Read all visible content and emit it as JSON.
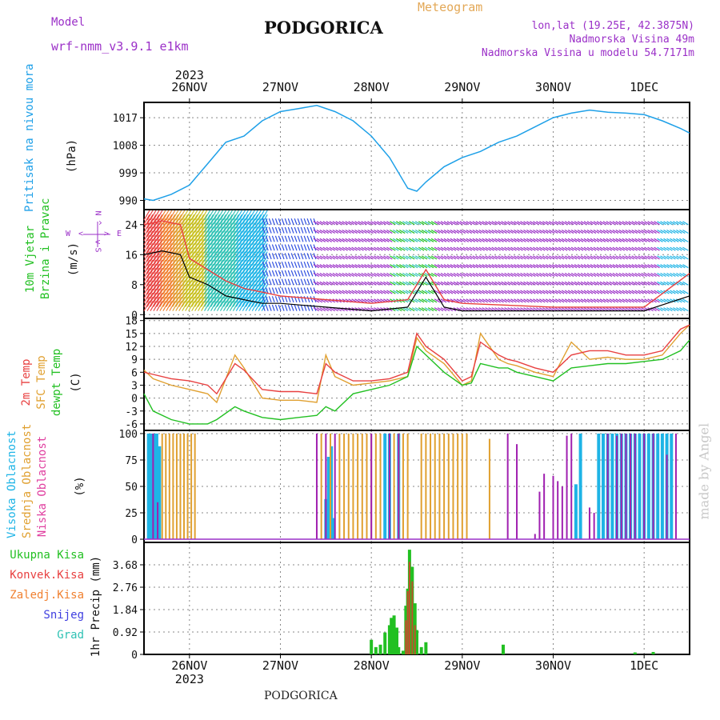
{
  "header": {
    "model_label": "Model",
    "model_name": "wrf-nmm_v3.9.1 e1km",
    "station": "PODGORICA",
    "product": "Meteogram",
    "lonlat": "lon,lat (19.25E, 42.3875N)",
    "elevation": "Nadmorska Visina 49m",
    "model_elevation": "Nadmorska Visina u modelu 54.7171m"
  },
  "footer": {
    "station": "PODGORICA",
    "signature": "made by Angel"
  },
  "colors": {
    "pressure": "#1ea0e8",
    "temp2m": "#e84040",
    "sfc": "#e0a030",
    "dewpt": "#22c022",
    "purple": "#9b30c8",
    "cyan": "#1eb4e6",
    "green": "#22c022",
    "teal": "#2fc2b4",
    "blue": "#4040e0"
  },
  "chart_data": [
    {
      "type": "line",
      "panel": "pressure",
      "ylabel_main": "Pritisak na nivou mora",
      "ylabel_unit": "(hPa)",
      "x_ticks": [
        "26NOV",
        "27NOV",
        "28NOV",
        "29NOV",
        "30NOV",
        "1DEC"
      ],
      "x_year": "2023",
      "ylim": [
        987,
        1022
      ],
      "yticks": [
        990,
        999,
        1008,
        1017
      ],
      "x_range": [
        -0.5,
        5.5
      ],
      "series": [
        {
          "x": [
            -0.5,
            -0.4,
            -0.2,
            0,
            0.2,
            0.4,
            0.6,
            0.8,
            1.0,
            1.2,
            1.4,
            1.6,
            1.8,
            2.0,
            2.2,
            2.4,
            2.5,
            2.6,
            2.8,
            3.0,
            3.2,
            3.4,
            3.6,
            3.8,
            4.0,
            4.2,
            4.4,
            4.6,
            4.8,
            5.0,
            5.2,
            5.4,
            5.5
          ],
          "y": [
            990.5,
            990,
            992,
            995,
            1002,
            1009,
            1011,
            1016,
            1019,
            1020,
            1021,
            1019,
            1016,
            1011,
            1004,
            994,
            993,
            996,
            1001,
            1004,
            1006,
            1009,
            1011,
            1014,
            1017,
            1018.5,
            1019.5,
            1018.8,
            1018.5,
            1018,
            1016,
            1013.5,
            1012
          ]
        }
      ]
    },
    {
      "type": "line",
      "panel": "wind",
      "ylabel_main": "10m Vjetar",
      "ylabel_sub": "Brzina i Pravac",
      "ylabel_unit": "(m/s)",
      "compass": {
        "n": "N",
        "s": "S",
        "w": "W",
        "e": "E",
        "arrow_up": "^",
        "arrow_down": "v",
        "arrow_left": "<",
        "arrow_right": ">"
      },
      "ylim": [
        -1,
        28
      ],
      "yticks": [
        0,
        8,
        16,
        24
      ],
      "series": [
        {
          "color": "black",
          "x": [
            -0.5,
            -0.3,
            -0.1,
            0.0,
            0.2,
            0.4,
            0.6,
            0.8,
            1.0,
            1.5,
            2.0,
            2.4,
            2.6,
            2.8,
            3.0,
            4.0,
            5.0,
            5.5
          ],
          "y": [
            16,
            17,
            16,
            10,
            8,
            5,
            4,
            3,
            3,
            2,
            1,
            2,
            10,
            2,
            1,
            1,
            1,
            5
          ]
        },
        {
          "color": "red",
          "x": [
            -0.5,
            -0.3,
            -0.1,
            0.0,
            0.2,
            0.4,
            0.6,
            0.8,
            1.0,
            1.5,
            2.0,
            2.4,
            2.6,
            2.8,
            3.0,
            4.0,
            5.0,
            5.5
          ],
          "y": [
            24,
            25,
            24,
            15,
            12,
            9,
            7,
            6,
            5,
            4,
            3,
            4,
            12,
            4,
            3,
            2,
            2,
            11
          ]
        }
      ]
    },
    {
      "type": "line",
      "panel": "temperature",
      "ylabel_lines": [
        "2m Temp",
        "SFC Temp",
        "dewpt Temp"
      ],
      "ylabel_unit": "(C)",
      "ylim": [
        -7.5,
        18.5
      ],
      "yticks": [
        -6,
        -3,
        0,
        3,
        6,
        9,
        12,
        15,
        18
      ],
      "series": [
        {
          "name": "2m Temp",
          "x": [
            -0.5,
            -0.4,
            -0.2,
            0,
            0.2,
            0.3,
            0.5,
            0.6,
            0.8,
            1.0,
            1.2,
            1.4,
            1.5,
            1.6,
            1.8,
            2.0,
            2.2,
            2.4,
            2.5,
            2.6,
            2.8,
            3.0,
            3.1,
            3.2,
            3.4,
            3.5,
            3.6,
            3.8,
            4.0,
            4.2,
            4.4,
            4.6,
            4.8,
            5.0,
            5.2,
            5.4,
            5.5
          ],
          "y": [
            6,
            5.5,
            4.5,
            4,
            3,
            1,
            8,
            6.5,
            2,
            1.5,
            1.5,
            1,
            8,
            6,
            4,
            4,
            4.5,
            6,
            15,
            12,
            9,
            4,
            5,
            13,
            10,
            9,
            8.5,
            7,
            6,
            10,
            11,
            11,
            10,
            10,
            11,
            16,
            17
          ]
        },
        {
          "name": "SFC Temp",
          "x": [
            -0.5,
            -0.4,
            -0.2,
            0,
            0.2,
            0.3,
            0.5,
            0.6,
            0.8,
            1.0,
            1.2,
            1.4,
            1.5,
            1.6,
            1.8,
            2.0,
            2.2,
            2.4,
            2.5,
            2.6,
            2.8,
            3.0,
            3.1,
            3.2,
            3.4,
            3.5,
            3.6,
            3.8,
            4.0,
            4.2,
            4.4,
            4.6,
            4.8,
            5.0,
            5.2,
            5.4,
            5.5
          ],
          "y": [
            6.5,
            4.5,
            3,
            2,
            1,
            -1,
            10,
            7,
            0,
            -0.5,
            -0.5,
            -1,
            10,
            5,
            3,
            3.5,
            4,
            5,
            14,
            11,
            8,
            3,
            4,
            15,
            9,
            8,
            7.5,
            6,
            5,
            13,
            9,
            9.5,
            9,
            9,
            10,
            15,
            17
          ]
        },
        {
          "name": "dewpt Temp",
          "x": [
            -0.5,
            -0.4,
            -0.2,
            0,
            0.2,
            0.3,
            0.5,
            0.6,
            0.8,
            1.0,
            1.2,
            1.4,
            1.5,
            1.6,
            1.8,
            2.0,
            2.2,
            2.4,
            2.5,
            2.6,
            2.8,
            3.0,
            3.1,
            3.2,
            3.4,
            3.5,
            3.6,
            3.8,
            4.0,
            4.2,
            4.4,
            4.6,
            4.8,
            5.0,
            5.2,
            5.4,
            5.5
          ],
          "y": [
            1,
            -3,
            -5,
            -6,
            -6,
            -5,
            -2,
            -3,
            -4.5,
            -5,
            -4.5,
            -4,
            -2,
            -3,
            1,
            2,
            3,
            5,
            12,
            10,
            6,
            3,
            3.5,
            8,
            7,
            7,
            6,
            5,
            4,
            7,
            7.5,
            8,
            8,
            8.5,
            9,
            11,
            13.5
          ]
        }
      ]
    },
    {
      "type": "bar",
      "panel": "cloud",
      "ylabel_lines": [
        "Visoka Oblacnost",
        "Srednja Oblacnost",
        "Niska Oblacnost"
      ],
      "ylabel_unit": "(%)",
      "ylim": [
        -3,
        103
      ],
      "yticks": [
        0,
        25,
        50,
        75,
        100
      ],
      "series": [
        {
          "name": "Visoka Oblacnost",
          "x": [
            -0.45,
            -0.42,
            -0.39,
            -0.36,
            -0.33,
            1.5,
            1.53,
            1.56,
            1.59,
            2.15,
            2.2,
            2.3,
            4.25,
            4.3,
            4.5,
            4.55,
            4.6,
            4.65,
            4.7,
            4.75,
            4.8,
            4.85,
            4.9,
            4.95,
            5.0,
            5.05,
            5.1,
            5.15,
            5.2,
            5.25,
            5.3
          ],
          "y": [
            100,
            100,
            100,
            100,
            88,
            38,
            78,
            88,
            20,
            100,
            100,
            100,
            52,
            100,
            100,
            100,
            100,
            100,
            100,
            100,
            100,
            100,
            100,
            100,
            100,
            100,
            100,
            100,
            100,
            100,
            100
          ]
        },
        {
          "name": "Srednja Oblacnost",
          "x": [
            -0.3,
            -0.26,
            -0.22,
            -0.18,
            -0.14,
            -0.1,
            -0.06,
            -0.02,
            0.02,
            0.06,
            1.45,
            1.55,
            1.65,
            1.7,
            1.75,
            1.8,
            1.85,
            1.9,
            1.95,
            2.0,
            2.05,
            2.1,
            2.25,
            2.3,
            2.35,
            2.4,
            2.55,
            2.6,
            2.65,
            2.7,
            2.75,
            2.8,
            2.85,
            2.9,
            2.95,
            3.0,
            3.05,
            3.3,
            4.4
          ],
          "y": [
            100,
            100,
            100,
            100,
            100,
            100,
            100,
            100,
            100,
            100,
            100,
            100,
            100,
            100,
            100,
            100,
            100,
            100,
            100,
            100,
            100,
            100,
            100,
            100,
            100,
            100,
            100,
            100,
            100,
            100,
            100,
            100,
            100,
            100,
            100,
            100,
            100,
            95,
            25
          ]
        },
        {
          "name": "Niska Oblacnost",
          "x": [
            -0.4,
            -0.35,
            1.4,
            1.5,
            1.6,
            2.0,
            2.2,
            2.3,
            3.5,
            3.6,
            3.8,
            3.85,
            3.9,
            4.0,
            4.05,
            4.1,
            4.15,
            4.2,
            4.4,
            4.45,
            4.6,
            4.7,
            4.75,
            4.8,
            4.85,
            4.9,
            5.0,
            5.1,
            5.25,
            5.35
          ],
          "y": [
            100,
            35,
            100,
            100,
            100,
            100,
            100,
            100,
            100,
            90,
            5,
            45,
            62,
            60,
            55,
            50,
            98,
            100,
            30,
            25,
            100,
            98,
            100,
            100,
            100,
            100,
            100,
            100,
            80,
            100
          ]
        }
      ]
    },
    {
      "type": "bar",
      "panel": "precipitation",
      "legend": [
        "Ukupna Kisa",
        "Konvek.Kisa",
        "Zaledj.Kisa",
        "Snijeg",
        "Grad"
      ],
      "ylabel": "1hr Precip (mm)",
      "ylim": [
        0,
        4.6
      ],
      "yticks": [
        0,
        0.92,
        1.84,
        2.76,
        3.68
      ],
      "ytick_labels": [
        "0",
        "0.92",
        "1.84",
        "2.76",
        "3.68"
      ],
      "x_ticks": [
        "26NOV",
        "27NOV",
        "28NOV",
        "29NOV",
        "30NOV",
        "1DEC"
      ],
      "x_year": "2023",
      "series": [
        {
          "name": "Ukupna Kisa",
          "x": [
            2.0,
            2.05,
            2.1,
            2.15,
            2.2,
            2.22,
            2.25,
            2.28,
            2.3,
            2.35,
            2.38,
            2.4,
            2.42,
            2.45,
            2.48,
            2.5,
            2.55,
            2.6,
            3.45,
            4.9,
            5.1
          ],
          "y": [
            0.6,
            0.3,
            0.4,
            0.9,
            1.2,
            1.5,
            1.6,
            1.1,
            0.3,
            0.15,
            2.0,
            2.7,
            4.3,
            3.6,
            2.1,
            1.0,
            0.3,
            0.5,
            0.4,
            0.08,
            0.1
          ]
        },
        {
          "name": "Konvek.Kisa",
          "x": [
            2.38,
            2.4,
            2.42,
            2.45,
            2.48
          ],
          "y": [
            1.4,
            2.6,
            3.8,
            3.0,
            1.2
          ]
        }
      ]
    }
  ]
}
